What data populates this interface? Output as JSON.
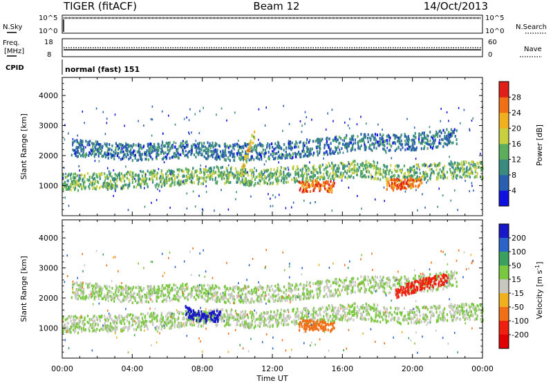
{
  "header": {
    "station": "TIGER (fitACF)",
    "beam": "Beam 12",
    "date": "14/Oct/2013"
  },
  "nsky_panel": {
    "left_label": "N.Sky",
    "right_label": "N.Search",
    "left_ticks": [
      "10^5",
      "10^0"
    ],
    "right_ticks": [
      "10^5",
      "10^0"
    ]
  },
  "freq_panel": {
    "left_label_line1": "Freq.",
    "left_label_line2": "[MHz]",
    "right_label": "Nave",
    "left_ticks": [
      "18",
      "8"
    ],
    "right_ticks": [
      "60",
      "0"
    ]
  },
  "cpid_panel": {
    "label": "CPID",
    "value": "normal (fast) 151"
  },
  "chart_data": [
    {
      "type": "heatmap",
      "title": "",
      "xlabel": "",
      "ylabel": "Slant Range [km]",
      "x_range_hours": [
        0,
        24
      ],
      "ylim": [
        0,
        4600
      ],
      "yticks": [
        1000,
        2000,
        3000,
        4000
      ],
      "colorbar": {
        "label": "Power [dB]",
        "ticks": [
          4,
          8,
          12,
          16,
          20,
          24,
          28
        ],
        "range": [
          0,
          32
        ],
        "colors": [
          "#1010e0",
          "#2a5fb0",
          "#3a8a80",
          "#5cae5c",
          "#c8d040",
          "#f0b020",
          "#f07018",
          "#e02018"
        ]
      },
      "bands": [
        {
          "t": [
            0,
            3,
            6,
            9,
            11,
            13,
            15,
            17,
            19,
            21,
            23,
            24
          ],
          "range_km": [
            1150,
            1200,
            1300,
            1400,
            1300,
            1400,
            1500,
            1600,
            1450,
            1500,
            1600,
            1550
          ],
          "value": 14
        },
        {
          "t": [
            0.5,
            4,
            7,
            9.5,
            12,
            15,
            17,
            19,
            21,
            22.5
          ],
          "range_km": [
            2300,
            2150,
            2250,
            2150,
            2200,
            2350,
            2500,
            2450,
            2550,
            2700
          ],
          "value": 8
        },
        {
          "t": [
            13.5,
            14.5,
            15.5
          ],
          "range_km": [
            1000,
            1050,
            1000
          ],
          "value": 26
        },
        {
          "t": [
            18.5,
            19.5,
            20.5
          ],
          "range_km": [
            1050,
            1100,
            1200
          ],
          "value": 26
        },
        {
          "t": [
            10.2,
            10.6,
            11.0
          ],
          "range_km": [
            1500,
            2200,
            2900
          ],
          "value": 20
        }
      ]
    },
    {
      "type": "heatmap",
      "title": "",
      "xlabel": "Time UT",
      "ylabel": "Slant Range [km]",
      "x_range_hours": [
        0,
        24
      ],
      "xticks": [
        "00:00",
        "04:00",
        "08:00",
        "12:00",
        "16:00",
        "20:00",
        "00:00"
      ],
      "ylim": [
        0,
        4600
      ],
      "yticks": [
        1000,
        2000,
        3000,
        4000
      ],
      "colorbar": {
        "label": "Velocity [m s^-1]",
        "ticks": [
          200,
          100,
          50,
          15,
          -15,
          -50,
          -100,
          -200
        ],
        "colors": [
          "#1818c8",
          "#2a64c8",
          "#3aa060",
          "#7ac840",
          "#c8c8c0",
          "#f0b020",
          "#f07018",
          "#f02010",
          "#e00000"
        ]
      },
      "bands": [
        {
          "t": [
            0,
            3,
            6,
            9,
            11,
            13,
            15,
            17,
            19,
            21,
            23,
            24
          ],
          "range_km": [
            1150,
            1200,
            1300,
            1400,
            1300,
            1400,
            1500,
            1600,
            1450,
            1500,
            1600,
            1550
          ],
          "value": 0
        },
        {
          "t": [
            0.5,
            4,
            7,
            9.5,
            12,
            15,
            17,
            19,
            21,
            22.5
          ],
          "range_km": [
            2300,
            2150,
            2250,
            2150,
            2200,
            2350,
            2500,
            2450,
            2550,
            2700
          ],
          "value": 0
        },
        {
          "t": [
            7,
            8,
            9
          ],
          "range_km": [
            1600,
            1400,
            1450
          ],
          "value": 180
        },
        {
          "t": [
            13.5,
            14.5,
            15.5
          ],
          "range_km": [
            1100,
            1150,
            1100
          ],
          "value": -120
        },
        {
          "t": [
            19,
            20.5,
            22
          ],
          "range_km": [
            2200,
            2500,
            2700
          ],
          "value": -200
        }
      ]
    }
  ]
}
